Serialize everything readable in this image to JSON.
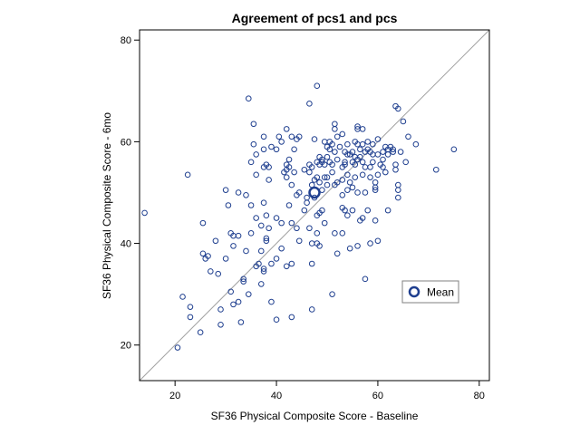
{
  "chart_data": {
    "type": "scatter",
    "title": "Agreement of pcs1 and pcs",
    "xlabel": "SF36 Physical Composite Score - Baseline",
    "ylabel": "SF36 Physical Composite Score - 6mo",
    "xlim": [
      13,
      82
    ],
    "ylim": [
      13,
      82
    ],
    "xticks": [
      20,
      40,
      60,
      80
    ],
    "yticks": [
      20,
      40,
      60,
      80
    ],
    "grid": false,
    "legend_position": "right",
    "colors": {
      "marker": "#1f3f8f",
      "reference_line": "#a0a0a0",
      "frame": "#000000"
    },
    "reference_line": {
      "x": [
        13,
        82
      ],
      "y": [
        13,
        82
      ]
    },
    "mean": {
      "name": "Mean",
      "x": 47.5,
      "y": 50
    },
    "legend": [
      {
        "label": "Mean",
        "marker": "large-open-circle"
      }
    ],
    "points": [
      [
        14,
        46
      ],
      [
        20.5,
        19.5
      ],
      [
        21.5,
        29.5
      ],
      [
        22.5,
        53.5
      ],
      [
        23,
        27.5
      ],
      [
        23,
        25.5
      ],
      [
        25,
        22.5
      ],
      [
        25.5,
        44
      ],
      [
        25.5,
        38
      ],
      [
        26,
        37
      ],
      [
        26.5,
        37.5
      ],
      [
        27,
        34.5
      ],
      [
        28,
        40.5
      ],
      [
        28.5,
        34
      ],
      [
        29,
        24
      ],
      [
        29,
        27
      ],
      [
        30,
        50.5
      ],
      [
        30,
        37
      ],
      [
        30.5,
        47.5
      ],
      [
        31,
        42
      ],
      [
        31,
        30.5
      ],
      [
        31.5,
        28
      ],
      [
        31.5,
        39.5
      ],
      [
        31.5,
        41.5
      ],
      [
        32.5,
        50
      ],
      [
        32.5,
        28.5
      ],
      [
        32.5,
        41.5
      ],
      [
        33,
        24.5
      ],
      [
        33.5,
        33
      ],
      [
        33.5,
        32.5
      ],
      [
        34,
        49.5
      ],
      [
        34,
        38.5
      ],
      [
        34.5,
        68.5
      ],
      [
        34.5,
        30
      ],
      [
        35,
        56
      ],
      [
        35,
        47.5
      ],
      [
        35,
        42
      ],
      [
        35.5,
        63.5
      ],
      [
        35.5,
        59.5
      ],
      [
        36,
        57.5
      ],
      [
        36,
        53.5
      ],
      [
        36,
        45
      ],
      [
        36,
        35.5
      ],
      [
        36.5,
        36
      ],
      [
        37,
        43.5
      ],
      [
        37,
        38.5
      ],
      [
        37,
        32
      ],
      [
        37.5,
        61
      ],
      [
        37.5,
        58.5
      ],
      [
        37.5,
        55
      ],
      [
        37.5,
        48
      ],
      [
        37.5,
        35
      ],
      [
        37.5,
        34.5
      ],
      [
        38,
        55.5
      ],
      [
        38,
        45.5
      ],
      [
        38,
        41
      ],
      [
        38,
        40.5
      ],
      [
        38.5,
        55
      ],
      [
        38.5,
        52.5
      ],
      [
        38.5,
        43
      ],
      [
        39,
        59
      ],
      [
        39,
        36
      ],
      [
        39,
        28.5
      ],
      [
        40,
        58.5
      ],
      [
        40,
        45
      ],
      [
        40,
        37
      ],
      [
        40,
        25
      ],
      [
        40.5,
        61
      ],
      [
        41,
        60
      ],
      [
        41,
        44
      ],
      [
        41,
        39
      ],
      [
        41.5,
        54
      ],
      [
        42,
        62.5
      ],
      [
        42,
        55.5
      ],
      [
        42,
        54.5
      ],
      [
        42,
        53
      ],
      [
        42,
        35.5
      ],
      [
        42.5,
        56.5
      ],
      [
        42.5,
        55
      ],
      [
        42.5,
        47.5
      ],
      [
        43,
        61
      ],
      [
        43,
        51.5
      ],
      [
        43,
        44
      ],
      [
        43,
        36
      ],
      [
        43,
        25.5
      ],
      [
        43.5,
        58.5
      ],
      [
        43.5,
        54
      ],
      [
        44,
        60.5
      ],
      [
        44,
        49.5
      ],
      [
        44,
        43
      ],
      [
        44.5,
        61
      ],
      [
        44.5,
        50
      ],
      [
        44.5,
        40.5
      ],
      [
        45.5,
        54.5
      ],
      [
        45.5,
        46.5
      ],
      [
        46,
        49
      ],
      [
        46,
        48
      ],
      [
        46.5,
        67.5
      ],
      [
        46.5,
        55.5
      ],
      [
        46.5,
        54
      ],
      [
        46.5,
        43
      ],
      [
        47,
        55
      ],
      [
        47,
        51.5
      ],
      [
        47,
        40
      ],
      [
        47,
        36
      ],
      [
        47,
        27
      ],
      [
        47.5,
        60.5
      ],
      [
        47.5,
        52.5
      ],
      [
        47.5,
        49
      ],
      [
        48,
        71
      ],
      [
        48,
        56
      ],
      [
        48,
        53
      ],
      [
        48,
        45.5
      ],
      [
        48,
        42
      ],
      [
        48,
        40
      ],
      [
        48.5,
        57
      ],
      [
        48.5,
        55.5
      ],
      [
        48.5,
        52
      ],
      [
        48.5,
        46
      ],
      [
        48.5,
        39.5
      ],
      [
        49,
        56.5
      ],
      [
        49,
        56
      ],
      [
        49,
        50.5
      ],
      [
        49,
        46.5
      ],
      [
        49.5,
        60
      ],
      [
        49.5,
        55.5
      ],
      [
        49.5,
        53
      ],
      [
        49.5,
        44
      ],
      [
        50,
        59
      ],
      [
        50,
        57
      ],
      [
        50,
        53
      ],
      [
        50,
        51.5
      ],
      [
        50.5,
        60
      ],
      [
        50.5,
        58.5
      ],
      [
        50.5,
        56
      ],
      [
        51,
        59.5
      ],
      [
        51,
        55.5
      ],
      [
        51,
        54
      ],
      [
        51,
        30
      ],
      [
        51.5,
        63.5
      ],
      [
        51.5,
        62.5
      ],
      [
        51.5,
        58
      ],
      [
        51.5,
        51.5
      ],
      [
        51.5,
        42
      ],
      [
        52,
        61
      ],
      [
        52,
        56.5
      ],
      [
        52,
        52
      ],
      [
        52,
        38
      ],
      [
        52.5,
        59
      ],
      [
        53,
        61.5
      ],
      [
        53,
        55
      ],
      [
        53,
        52.5
      ],
      [
        53,
        49.5
      ],
      [
        53,
        47
      ],
      [
        53,
        42
      ],
      [
        53.5,
        58
      ],
      [
        53.5,
        56
      ],
      [
        53.5,
        55.5
      ],
      [
        53.5,
        46.5
      ],
      [
        54,
        59.5
      ],
      [
        54,
        57.5
      ],
      [
        54,
        53.5
      ],
      [
        54,
        50.5
      ],
      [
        54,
        45.5
      ],
      [
        54.5,
        57.5
      ],
      [
        54.5,
        52
      ],
      [
        54.5,
        39
      ],
      [
        55,
        58
      ],
      [
        55,
        56
      ],
      [
        55,
        51
      ],
      [
        55,
        46.5
      ],
      [
        55.5,
        60
      ],
      [
        55.5,
        57
      ],
      [
        55.5,
        55.5
      ],
      [
        55.5,
        53
      ],
      [
        56,
        63
      ],
      [
        56,
        62.5
      ],
      [
        56,
        59.5
      ],
      [
        56,
        56.5
      ],
      [
        56,
        50
      ],
      [
        56,
        39.5
      ],
      [
        56.5,
        58.5
      ],
      [
        56.5,
        57
      ],
      [
        56.5,
        44.5
      ],
      [
        57,
        62.5
      ],
      [
        57,
        59.5
      ],
      [
        57,
        56
      ],
      [
        57,
        53.5
      ],
      [
        57,
        45
      ],
      [
        57.5,
        58
      ],
      [
        57.5,
        55
      ],
      [
        57.5,
        50
      ],
      [
        57.5,
        33
      ],
      [
        58,
        60
      ],
      [
        58,
        58.5
      ],
      [
        58,
        46.5
      ],
      [
        58.5,
        58
      ],
      [
        58.5,
        55
      ],
      [
        58.5,
        53
      ],
      [
        58.5,
        40
      ],
      [
        59,
        59.5
      ],
      [
        59,
        57.5
      ],
      [
        59,
        56
      ],
      [
        59.5,
        52
      ],
      [
        59.5,
        51
      ],
      [
        59.5,
        50.5
      ],
      [
        59.5,
        44.5
      ],
      [
        60,
        60.5
      ],
      [
        60,
        57.5
      ],
      [
        60,
        53.5
      ],
      [
        60,
        40.5
      ],
      [
        60.5,
        55.5
      ],
      [
        61,
        58
      ],
      [
        61,
        56.5
      ],
      [
        61,
        55
      ],
      [
        61.5,
        59
      ],
      [
        61.5,
        54
      ],
      [
        62,
        58.5
      ],
      [
        62,
        57.5
      ],
      [
        62,
        46.5
      ],
      [
        62.5,
        59
      ],
      [
        63,
        58.5
      ],
      [
        63,
        58
      ],
      [
        63.5,
        67
      ],
      [
        63.5,
        55.5
      ],
      [
        63.5,
        54.5
      ],
      [
        64,
        66.5
      ],
      [
        64,
        51.5
      ],
      [
        64,
        50.5
      ],
      [
        64,
        49
      ],
      [
        64.5,
        58
      ],
      [
        65,
        64
      ],
      [
        65.5,
        56
      ],
      [
        66,
        61
      ],
      [
        67.5,
        59.5
      ],
      [
        71.5,
        54.5
      ],
      [
        75,
        58.5
      ]
    ]
  }
}
